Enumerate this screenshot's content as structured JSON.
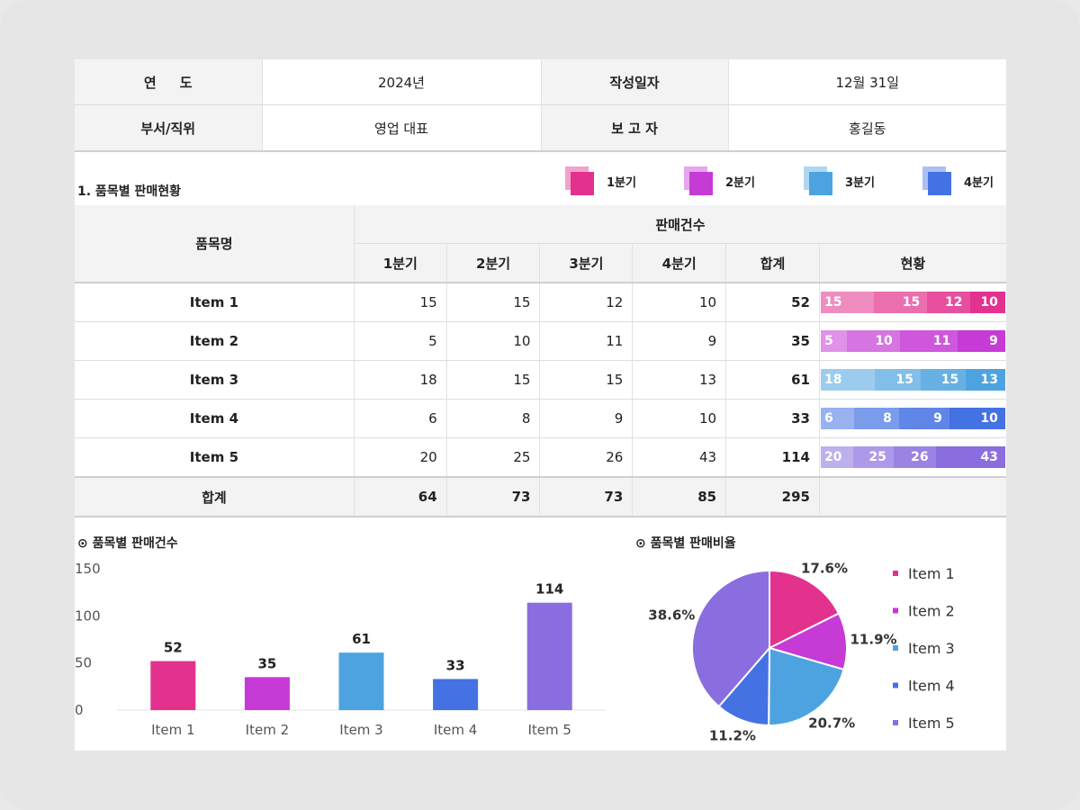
{
  "header": {
    "year_label": "연     도",
    "year_value": "2024년",
    "date_label": "작성일자",
    "date_value": "12월 31일",
    "dept_label": "부서/직위",
    "dept_value": "영업 대표",
    "reporter_label": "보 고 자",
    "reporter_value": "홍길동"
  },
  "section_title": "1. 품목별 판매현황",
  "quarter_legend": [
    {
      "label": "1분기",
      "color": "#e3318e"
    },
    {
      "label": "2분기",
      "color": "#c63ad6"
    },
    {
      "label": "3분기",
      "color": "#4da3e0"
    },
    {
      "label": "4분기",
      "color": "#4472e3"
    }
  ],
  "table": {
    "item_header": "품목명",
    "group_header": "판매건수",
    "columns": [
      "1분기",
      "2분기",
      "3분기",
      "4분기",
      "합계",
      "현황"
    ],
    "rows": [
      {
        "name": "Item 1",
        "q": [
          "15",
          "15",
          "12",
          "10"
        ],
        "total": "52"
      },
      {
        "name": "Item 2",
        "q": [
          "5",
          "10",
          "11",
          "9"
        ],
        "total": "35"
      },
      {
        "name": "Item 3",
        "q": [
          "18",
          "15",
          "15",
          "13"
        ],
        "total": "61"
      },
      {
        "name": "Item 4",
        "q": [
          "6",
          "8",
          "9",
          "10"
        ],
        "total": "33"
      },
      {
        "name": "Item 5",
        "q": [
          "20",
          "25",
          "26",
          "43"
        ],
        "total": "114"
      }
    ],
    "sum_label": "합계",
    "sum_values": [
      "64",
      "73",
      "73",
      "85",
      "295"
    ]
  },
  "row_colors": [
    "#e3318e",
    "#c63ad6",
    "#4da3e0",
    "#4472e3",
    "#8a6ee0"
  ],
  "bar_chart_title": "⊙ 품목별 판매건수",
  "pie_chart_title": "⊙ 품목별 판매비율",
  "chart_data": [
    {
      "type": "bar",
      "categories": [
        "Item 1",
        "Item 2",
        "Item 3",
        "Item 4",
        "Item 5"
      ],
      "values": [
        52,
        35,
        61,
        33,
        114
      ],
      "yticks": [
        "0",
        "50",
        "100",
        "150"
      ],
      "ylim": [
        0,
        150
      ],
      "colors": [
        "#e3318e",
        "#c63ad6",
        "#4da3e0",
        "#4472e3",
        "#8a6ee0"
      ]
    },
    {
      "type": "pie",
      "labels": [
        "Item 1",
        "Item 2",
        "Item 3",
        "Item 4",
        "Item 5"
      ],
      "values": [
        52,
        35,
        61,
        33,
        114
      ],
      "percent_labels": [
        "17.6%",
        "11.9%",
        "20.7%",
        "11.2%",
        "38.6%"
      ],
      "colors": [
        "#e3318e",
        "#c63ad6",
        "#4da3e0",
        "#4472e3",
        "#8a6ee0"
      ]
    }
  ]
}
